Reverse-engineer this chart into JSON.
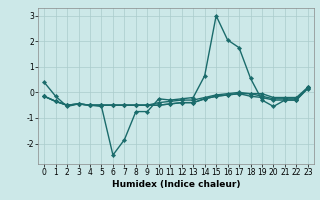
{
  "title": "",
  "xlabel": "Humidex (Indice chaleur)",
  "background_color": "#cce8e8",
  "grid_color": "#aacccc",
  "line_color": "#1a6b6b",
  "x_values": [
    0,
    1,
    2,
    3,
    4,
    5,
    6,
    7,
    8,
    9,
    10,
    11,
    12,
    13,
    14,
    15,
    16,
    17,
    18,
    19,
    20,
    21,
    22,
    23
  ],
  "series": [
    [
      0.4,
      -0.15,
      -0.55,
      -0.45,
      -0.5,
      -0.55,
      -2.45,
      -1.85,
      -0.75,
      -0.75,
      -0.25,
      -0.3,
      -0.25,
      -0.2,
      0.65,
      3.0,
      2.05,
      1.75,
      0.55,
      -0.3,
      -0.55,
      -0.3,
      -0.3,
      0.2
    ],
    [
      -0.15,
      -0.35,
      -0.5,
      -0.45,
      -0.5,
      -0.5,
      -0.5,
      -0.5,
      -0.5,
      -0.5,
      -0.5,
      -0.45,
      -0.4,
      -0.4,
      -0.25,
      -0.15,
      -0.1,
      -0.05,
      -0.05,
      -0.05,
      -0.2,
      -0.2,
      -0.2,
      0.2
    ],
    [
      -0.15,
      -0.35,
      -0.5,
      -0.45,
      -0.5,
      -0.5,
      -0.5,
      -0.5,
      -0.5,
      -0.5,
      -0.5,
      -0.45,
      -0.4,
      -0.4,
      -0.25,
      -0.15,
      -0.1,
      -0.05,
      -0.15,
      -0.2,
      -0.3,
      -0.3,
      -0.3,
      0.15
    ],
    [
      -0.15,
      -0.35,
      -0.5,
      -0.45,
      -0.5,
      -0.5,
      -0.5,
      -0.5,
      -0.5,
      -0.5,
      -0.4,
      -0.35,
      -0.3,
      -0.3,
      -0.2,
      -0.1,
      -0.05,
      0.0,
      -0.05,
      -0.15,
      -0.25,
      -0.25,
      -0.25,
      0.17
    ]
  ],
  "ylim": [
    -2.8,
    3.3
  ],
  "xlim": [
    -0.5,
    23.5
  ],
  "yticks": [
    -2,
    -1,
    0,
    1,
    2,
    3
  ],
  "xticks": [
    0,
    1,
    2,
    3,
    4,
    5,
    6,
    7,
    8,
    9,
    10,
    11,
    12,
    13,
    14,
    15,
    16,
    17,
    18,
    19,
    20,
    21,
    22,
    23
  ],
  "marker": "D",
  "marker_size": 2.2,
  "line_width": 1.0,
  "tick_fontsize": 5.5,
  "xlabel_fontsize": 6.5
}
